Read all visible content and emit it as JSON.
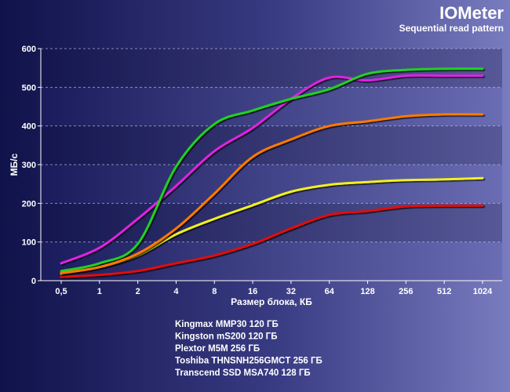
{
  "chart_data": {
    "type": "line",
    "title": "IOMeter",
    "subtitle": "Sequential read pattern",
    "xlabel": "Размер блока, КБ",
    "ylabel": "МБ/с",
    "categories": [
      "0,5",
      "1",
      "2",
      "4",
      "8",
      "16",
      "32",
      "64",
      "128",
      "256",
      "512",
      "1024"
    ],
    "x_scale": "log2",
    "ylim": [
      0,
      600
    ],
    "yticks": [
      "0",
      "100",
      "200",
      "300",
      "400",
      "500",
      "600"
    ],
    "grid": "horizontal dashed",
    "legend_position": "bottom",
    "series": [
      {
        "name": "Kingmax MMP30 120 ГБ",
        "color": "#e01010",
        "values": [
          10,
          15,
          25,
          45,
          65,
          95,
          135,
          170,
          180,
          192,
          194,
          194
        ]
      },
      {
        "name": "Kingston mS200 120 ГБ",
        "color": "#f0f020",
        "values": [
          18,
          35,
          65,
          120,
          160,
          195,
          230,
          248,
          255,
          260,
          262,
          265
        ]
      },
      {
        "name": "Plextor M5M 256 ГБ",
        "color": "#e020e0",
        "values": [
          45,
          85,
          160,
          245,
          335,
          395,
          470,
          525,
          518,
          530,
          530,
          530
        ]
      },
      {
        "name": "Toshiba THNSNH256GMCT 256 ГБ",
        "color": "#20d020",
        "values": [
          25,
          45,
          95,
          295,
          405,
          440,
          470,
          495,
          535,
          545,
          548,
          548
        ]
      },
      {
        "name": "Transcend SSD MSA740 128 ГБ",
        "color": "#ff7a00",
        "values": [
          20,
          35,
          70,
          135,
          225,
          320,
          365,
          400,
          412,
          425,
          430,
          430
        ]
      }
    ]
  }
}
